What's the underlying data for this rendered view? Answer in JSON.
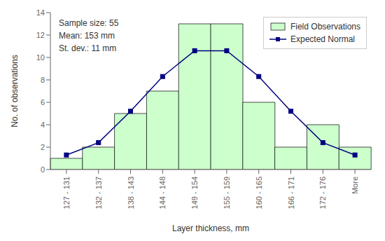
{
  "chart_data": {
    "type": "bar",
    "categories": [
      "127 - 131",
      "132 - 137",
      "138 - 143",
      "144 - 148",
      "149 - 154",
      "155 - 159",
      "160 - 165",
      "166 - 171",
      "172 - 176",
      "More"
    ],
    "series": [
      {
        "name": "Field Observations",
        "type": "bar",
        "color": "#CCFFCC",
        "values": [
          1,
          2,
          5,
          7,
          13,
          13,
          6,
          2,
          4,
          2
        ]
      },
      {
        "name": "Expected Normal",
        "type": "line",
        "color": "#000080",
        "marker": "square",
        "values": [
          1.3,
          2.4,
          5.2,
          8.3,
          10.6,
          10.6,
          8.3,
          5.2,
          2.4,
          1.3
        ]
      }
    ],
    "xlabel": "Layer thickness, mm",
    "ylabel": "No. of observations",
    "ylim": [
      0,
      14
    ],
    "yticks": [
      0,
      2,
      4,
      6,
      8,
      10,
      12,
      14
    ],
    "annotation": "Sample size: 55\nMean: 153 mm\nSt. dev.: 11 mm",
    "legend": "upper right",
    "grid": false
  }
}
